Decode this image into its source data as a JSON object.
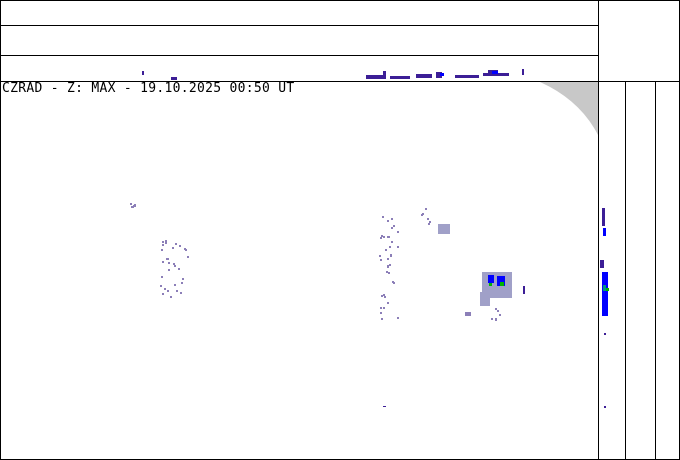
{
  "map": {
    "title": "CZRAD - Z: MAX - 19.10.2025 00:50 UT",
    "product": "MAX",
    "colors": {
      "weak": "#8c7fb8",
      "light": "#a0a0c8",
      "moderate_dark": "#3c1e96",
      "moderate": "#0000ff",
      "strong": "#009682",
      "green": "#00b400",
      "no_coverage": "#c8c8c8"
    }
  }
}
